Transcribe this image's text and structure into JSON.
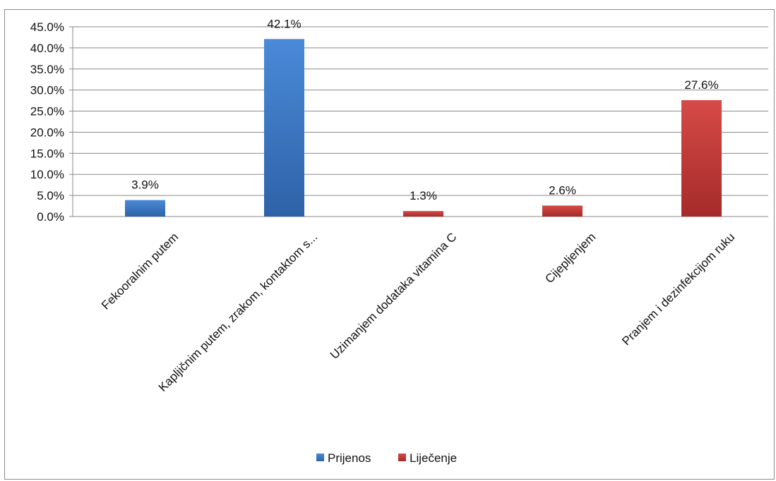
{
  "chart_data": {
    "type": "bar",
    "categories": [
      "Fekooralnim putem",
      "Kapljičnim putem, zrakom, kontaktom s...",
      "Uzimanjem dodataka vitamina C",
      "Cijepljenjem",
      "Pranjem i dezinfekcijom ruku"
    ],
    "series": [
      {
        "name": "Prijenos",
        "values": [
          3.9,
          42.1,
          null,
          null,
          null
        ],
        "labels": [
          "3.9%",
          "42.1%",
          "",
          "",
          ""
        ],
        "color": "#3d7cc9"
      },
      {
        "name": "Liječenje",
        "values": [
          null,
          null,
          1.3,
          2.6,
          27.6
        ],
        "labels": [
          "",
          "",
          "1.3%",
          "2.6%",
          "27.6%"
        ],
        "color": "#c53a38"
      }
    ],
    "ylim": [
      0,
      45
    ],
    "yticks": [
      "0.0%",
      "5.0%",
      "10.0%",
      "15.0%",
      "20.0%",
      "25.0%",
      "30.0%",
      "35.0%",
      "40.0%",
      "45.0%"
    ],
    "ytick_values": [
      0,
      5,
      10,
      15,
      20,
      25,
      30,
      35,
      40,
      45
    ],
    "grid": true,
    "legend_position": "bottom",
    "title": "",
    "xlabel": "",
    "ylabel": ""
  }
}
